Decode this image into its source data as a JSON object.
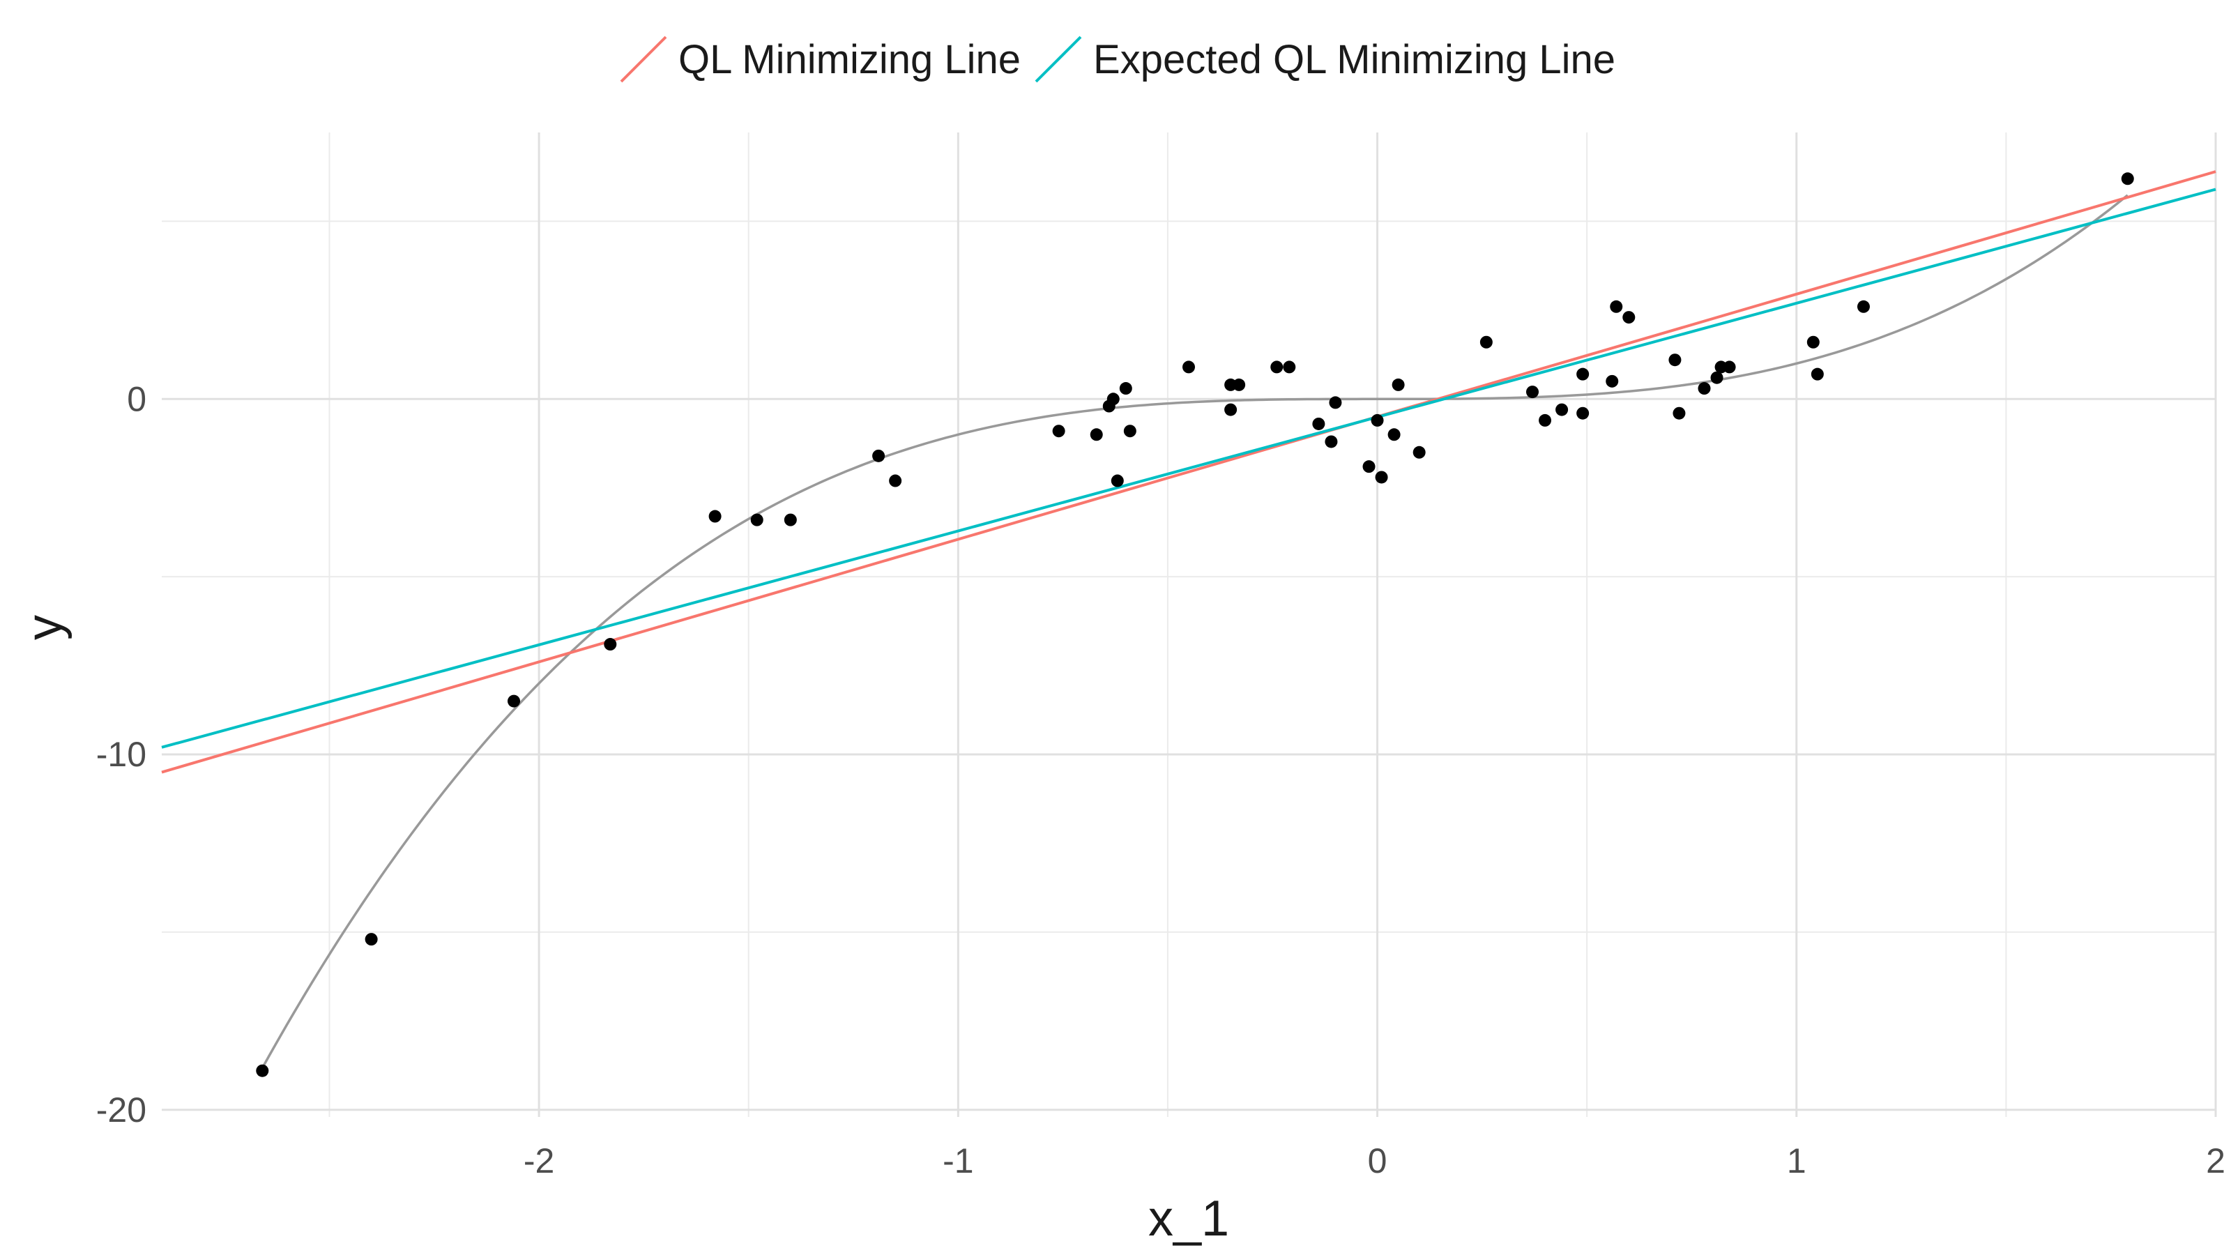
{
  "chart_data": {
    "type": "scatter",
    "xlabel": "x_1",
    "ylabel": "y",
    "xlim": [
      -2.9,
      2.0
    ],
    "ylim": [
      -20.2,
      7.5
    ],
    "x_ticks": [
      -2,
      -1,
      0,
      1,
      2
    ],
    "x_tick_labels": [
      "-2",
      "-1",
      "0",
      "1",
      "2"
    ],
    "y_ticks": [
      -20,
      -10,
      0
    ],
    "y_tick_labels": [
      "-20",
      "-10",
      "0"
    ],
    "x_minor_grid": [
      -2.5,
      -1.5,
      -0.5,
      0.5,
      1.5
    ],
    "y_minor_grid": [
      -15,
      -5,
      5
    ],
    "grid": true,
    "legend_position": "top",
    "points": [
      {
        "x": -2.66,
        "y": -18.9
      },
      {
        "x": -2.4,
        "y": -15.2
      },
      {
        "x": -2.06,
        "y": -8.5
      },
      {
        "x": -1.83,
        "y": -6.9
      },
      {
        "x": -1.58,
        "y": -3.3
      },
      {
        "x": -1.48,
        "y": -3.4
      },
      {
        "x": -1.4,
        "y": -3.4
      },
      {
        "x": -1.19,
        "y": -1.6
      },
      {
        "x": -1.15,
        "y": -2.3
      },
      {
        "x": -0.76,
        "y": -0.9
      },
      {
        "x": -0.67,
        "y": -1.0
      },
      {
        "x": -0.64,
        "y": -0.2
      },
      {
        "x": -0.63,
        "y": 0.0
      },
      {
        "x": -0.62,
        "y": -2.3
      },
      {
        "x": -0.6,
        "y": 0.3
      },
      {
        "x": -0.59,
        "y": -0.9
      },
      {
        "x": -0.45,
        "y": 0.9
      },
      {
        "x": -0.35,
        "y": 0.4
      },
      {
        "x": -0.35,
        "y": -0.3
      },
      {
        "x": -0.33,
        "y": 0.4
      },
      {
        "x": -0.24,
        "y": 0.9
      },
      {
        "x": -0.21,
        "y": 0.9
      },
      {
        "x": -0.14,
        "y": -0.7
      },
      {
        "x": -0.11,
        "y": -1.2
      },
      {
        "x": -0.1,
        "y": -0.1
      },
      {
        "x": -0.02,
        "y": -1.9
      },
      {
        "x": 0.0,
        "y": -0.6
      },
      {
        "x": 0.01,
        "y": -2.2
      },
      {
        "x": 0.04,
        "y": -1.0
      },
      {
        "x": 0.05,
        "y": 0.4
      },
      {
        "x": 0.1,
        "y": -1.5
      },
      {
        "x": 0.26,
        "y": 1.6
      },
      {
        "x": 0.37,
        "y": 0.2
      },
      {
        "x": 0.4,
        "y": -0.6
      },
      {
        "x": 0.44,
        "y": -0.3
      },
      {
        "x": 0.49,
        "y": -0.4
      },
      {
        "x": 0.49,
        "y": 0.7
      },
      {
        "x": 0.56,
        "y": 0.5
      },
      {
        "x": 0.57,
        "y": 2.6
      },
      {
        "x": 0.6,
        "y": 2.3
      },
      {
        "x": 0.71,
        "y": 1.1
      },
      {
        "x": 0.72,
        "y": -0.4
      },
      {
        "x": 0.78,
        "y": 0.3
      },
      {
        "x": 0.81,
        "y": 0.6
      },
      {
        "x": 0.82,
        "y": 0.9
      },
      {
        "x": 0.84,
        "y": 0.9
      },
      {
        "x": 1.04,
        "y": 1.6
      },
      {
        "x": 1.05,
        "y": 0.7
      },
      {
        "x": 1.16,
        "y": 2.6
      },
      {
        "x": 1.79,
        "y": 6.2
      }
    ],
    "curve": {
      "type": "cubic",
      "coefficient": 1.0,
      "x_range": [
        -2.66,
        1.79
      ],
      "color": "#999999"
    },
    "series": [
      {
        "name": "QL Minimizing Line",
        "type": "line",
        "color": "#F8766D",
        "x": [
          -2.9,
          2.0
        ],
        "y": [
          -10.5,
          6.4
        ]
      },
      {
        "name": "Expected QL Minimizing Line",
        "type": "line",
        "color": "#00BFC4",
        "x": [
          -2.9,
          2.0
        ],
        "y": [
          -9.8,
          5.9
        ]
      }
    ]
  }
}
